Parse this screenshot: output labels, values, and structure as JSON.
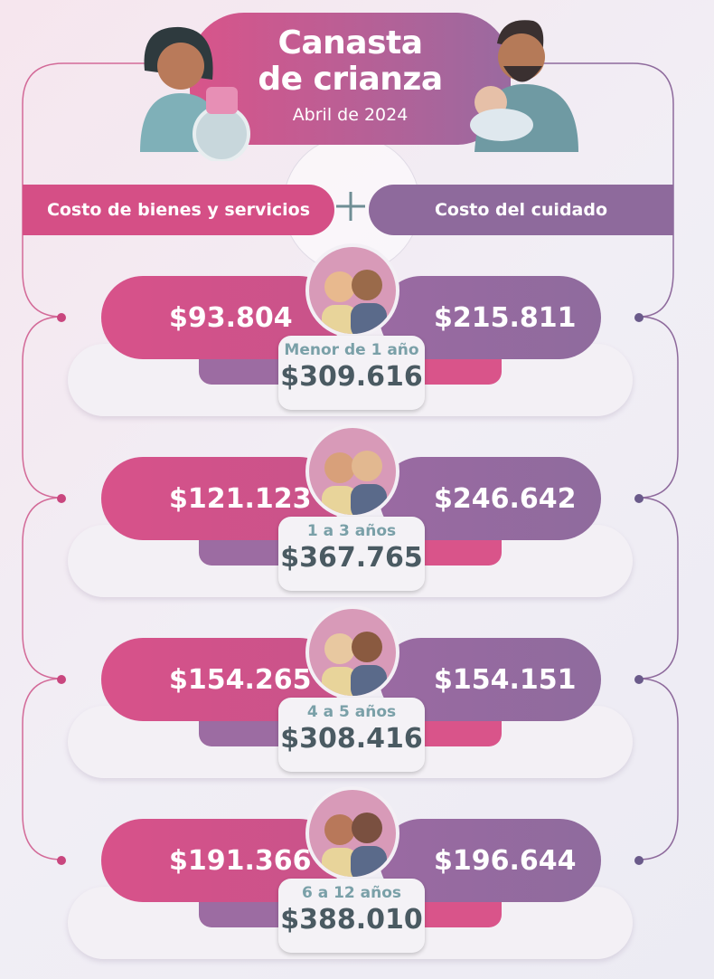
{
  "header": {
    "title_line1": "Canasta",
    "title_line2": "de crianza",
    "subtitle": "Abril de 2024"
  },
  "columns": {
    "left": "Costo de bienes y servicios",
    "right": "Costo del cuidado"
  },
  "rows": [
    {
      "goods": "$93.804",
      "care": "$215.811",
      "age": "Menor de 1 año",
      "total": "$309.616"
    },
    {
      "goods": "$121.123",
      "care": "$246.642",
      "age": "1 a 3 años",
      "total": "$367.765"
    },
    {
      "goods": "$154.265",
      "care": "$154.151",
      "age": "4 a 5 años",
      "total": "$308.416"
    },
    {
      "goods": "$191.366",
      "care": "$196.644",
      "age": "6 a 12 años",
      "total": "$388.010"
    }
  ]
}
